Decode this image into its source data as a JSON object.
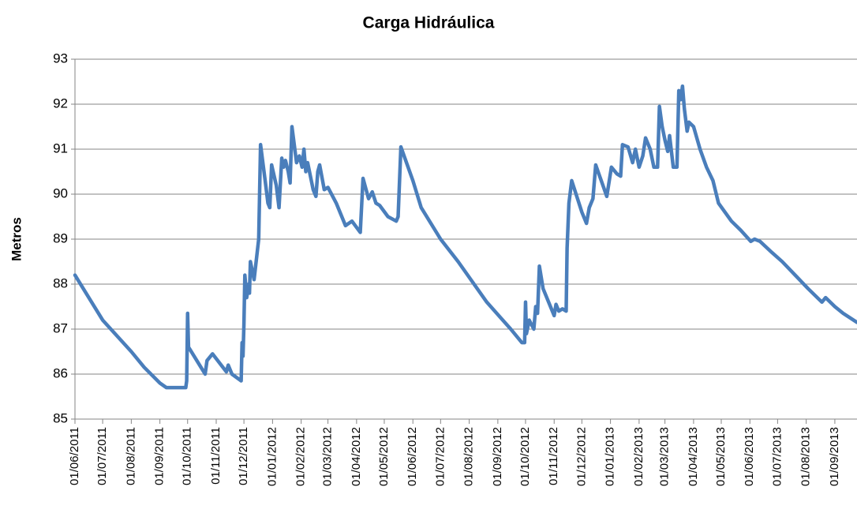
{
  "chart_data": {
    "type": "line",
    "title": "Carga Hidráulica",
    "ylabel": "Metros",
    "color": "#4a7ebb",
    "grid": true,
    "ylim": [
      85,
      93
    ],
    "yticks": [
      85,
      86,
      87,
      88,
      89,
      90,
      91,
      92,
      93
    ],
    "xlim": [
      "01/06/2011",
      "25/09/2013"
    ],
    "xticks": [
      "01/06/2011",
      "01/07/2011",
      "01/08/2011",
      "01/09/2011",
      "01/10/2011",
      "01/11/2011",
      "01/12/2011",
      "01/01/2012",
      "01/02/2012",
      "01/03/2012",
      "01/04/2012",
      "01/05/2012",
      "01/06/2012",
      "01/07/2012",
      "01/08/2012",
      "01/09/2012",
      "01/10/2012",
      "01/11/2012",
      "01/12/2012",
      "01/01/2013",
      "01/02/2013",
      "01/03/2013",
      "01/04/2013",
      "01/05/2013",
      "01/06/2013",
      "01/07/2013",
      "01/08/2013",
      "01/09/2013"
    ],
    "x": [
      "01/06/2011",
      "01/07/2011",
      "01/08/2011",
      "15/08/2011",
      "01/09/2011",
      "08/09/2011",
      "29/09/2011",
      "30/09/2011",
      "01/10/2011",
      "02/10/2011",
      "20/10/2011",
      "22/10/2011",
      "28/10/2011",
      "12/11/2011",
      "14/11/2011",
      "18/11/2011",
      "28/11/2011",
      "29/11/2011",
      "30/11/2011",
      "01/12/2011",
      "02/12/2011",
      "04/12/2011",
      "06/12/2011",
      "07/12/2011",
      "08/12/2011",
      "12/12/2011",
      "17/12/2011",
      "19/12/2011",
      "24/12/2011",
      "27/12/2011",
      "29/12/2011",
      "31/12/2011",
      "05/01/2012",
      "08/01/2012",
      "11/01/2012",
      "13/01/2012",
      "15/01/2012",
      "18/01/2012",
      "20/01/2012",
      "22/01/2012",
      "27/01/2012",
      "30/01/2012",
      "02/02/2012",
      "04/02/2012",
      "06/02/2012",
      "08/02/2012",
      "14/02/2012",
      "17/02/2012",
      "19/02/2012",
      "21/02/2012",
      "26/02/2012",
      "01/03/2012",
      "10/03/2012",
      "20/03/2012",
      "27/03/2012",
      "05/04/2012",
      "08/04/2012",
      "14/04/2012",
      "18/04/2012",
      "22/04/2012",
      "26/04/2012",
      "05/05/2012",
      "14/05/2012",
      "16/05/2012",
      "19/05/2012",
      "01/06/2012",
      "10/06/2012",
      "01/07/2012",
      "20/07/2012",
      "20/08/2012",
      "15/09/2012",
      "27/09/2012",
      "30/09/2012",
      "01/10/2012",
      "02/10/2012",
      "05/10/2012",
      "10/10/2012",
      "12/10/2012",
      "14/10/2012",
      "16/10/2012",
      "20/10/2012",
      "01/11/2012",
      "03/11/2012",
      "06/11/2012",
      "10/11/2012",
      "14/11/2012",
      "15/11/2012",
      "17/11/2012",
      "20/11/2012",
      "01/12/2012",
      "06/12/2012",
      "09/12/2012",
      "13/12/2012",
      "16/12/2012",
      "22/12/2012",
      "28/12/2012",
      "02/01/2013",
      "08/01/2013",
      "12/01/2013",
      "14/01/2013",
      "20/01/2013",
      "25/01/2013",
      "28/01/2013",
      "01/02/2013",
      "05/02/2013",
      "08/02/2013",
      "13/02/2013",
      "17/02/2013",
      "21/02/2013",
      "23/02/2013",
      "26/02/2013",
      "01/03/2013",
      "04/03/2013",
      "06/03/2013",
      "10/03/2013",
      "14/03/2013",
      "16/03/2013",
      "18/03/2013",
      "20/03/2013",
      "22/03/2013",
      "25/03/2013",
      "27/03/2013",
      "01/04/2013",
      "08/04/2013",
      "15/04/2013",
      "22/04/2013",
      "28/04/2013",
      "05/05/2013",
      "12/05/2013",
      "22/05/2013",
      "02/06/2013",
      "06/06/2013",
      "12/06/2013",
      "25/06/2013",
      "06/07/2013",
      "20/07/2013",
      "03/08/2013",
      "18/08/2013",
      "22/08/2013",
      "01/09/2013",
      "10/09/2013",
      "25/09/2013"
    ],
    "values": [
      88.2,
      87.2,
      86.5,
      86.15,
      85.8,
      85.7,
      85.7,
      85.85,
      87.35,
      86.6,
      86.0,
      86.3,
      86.45,
      86.05,
      86.2,
      86.0,
      85.85,
      86.7,
      86.4,
      87.1,
      88.2,
      87.7,
      88.0,
      87.8,
      88.5,
      88.1,
      89.0,
      91.1,
      90.3,
      89.8,
      89.7,
      90.65,
      90.2,
      89.7,
      90.8,
      90.6,
      90.75,
      90.5,
      90.25,
      91.5,
      90.7,
      90.85,
      90.6,
      91.0,
      90.5,
      90.7,
      90.1,
      89.95,
      90.5,
      90.65,
      90.1,
      90.15,
      89.8,
      89.3,
      89.4,
      89.15,
      90.35,
      89.9,
      90.05,
      89.8,
      89.75,
      89.5,
      89.4,
      89.5,
      91.05,
      90.3,
      89.7,
      89.0,
      88.5,
      87.6,
      87.0,
      86.7,
      86.7,
      87.6,
      86.9,
      87.2,
      87.0,
      87.5,
      87.35,
      88.4,
      87.9,
      87.3,
      87.55,
      87.4,
      87.45,
      87.4,
      88.8,
      89.8,
      90.3,
      89.6,
      89.35,
      89.7,
      89.9,
      90.65,
      90.3,
      89.95,
      90.6,
      90.45,
      90.4,
      91.1,
      91.05,
      90.7,
      91.0,
      90.6,
      90.85,
      91.25,
      91.0,
      90.6,
      90.6,
      91.95,
      91.5,
      91.2,
      90.95,
      91.3,
      90.6,
      90.6,
      92.3,
      92.1,
      92.4,
      91.9,
      91.4,
      91.6,
      91.5,
      91.0,
      90.6,
      90.3,
      89.8,
      89.6,
      89.4,
      89.2,
      88.95,
      89.0,
      88.95,
      88.7,
      88.5,
      88.2,
      87.9,
      87.6,
      87.7,
      87.5,
      87.35,
      87.15
    ]
  }
}
